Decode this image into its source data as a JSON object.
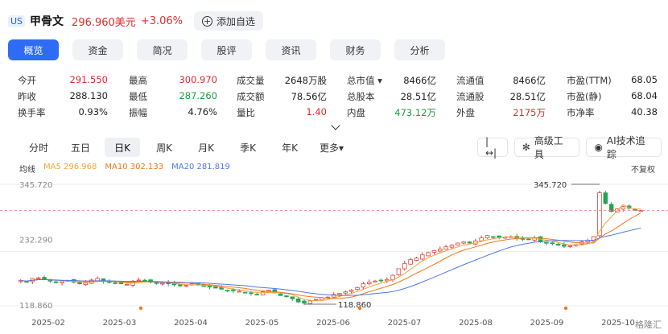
{
  "header": {
    "market": "US",
    "name": "甲骨文",
    "price": "296.960美元",
    "change": "+3.06%",
    "watch_label": "添加自选",
    "watch_icon": "plus-circle-icon"
  },
  "tabs": [
    "概览",
    "资金",
    "简况",
    "股评",
    "资讯",
    "财务",
    "分析"
  ],
  "stats": {
    "row1": [
      {
        "label": "今开",
        "value": "291.550",
        "tone": "up"
      },
      {
        "label": "最高",
        "value": "300.970",
        "tone": "up"
      },
      {
        "label": "成交量",
        "value": "2648万股",
        "tone": ""
      },
      {
        "label": "总市值 ▾",
        "value": "8466亿",
        "tone": ""
      },
      {
        "label": "流通值",
        "value": "8466亿",
        "tone": ""
      },
      {
        "label": "市盈(TTM)",
        "value": "68.05",
        "tone": ""
      }
    ],
    "row2": [
      {
        "label": "昨收",
        "value": "288.130",
        "tone": ""
      },
      {
        "label": "最低",
        "value": "287.260",
        "tone": "down"
      },
      {
        "label": "成交额",
        "value": "78.56亿",
        "tone": ""
      },
      {
        "label": "总股本",
        "value": "28.51亿",
        "tone": ""
      },
      {
        "label": "流通股",
        "value": "28.51亿",
        "tone": ""
      },
      {
        "label": "市盈(静)",
        "value": "68.04",
        "tone": ""
      }
    ],
    "row3": [
      {
        "label": "换手率",
        "value": "0.93%",
        "tone": ""
      },
      {
        "label": "振幅",
        "value": "4.76%",
        "tone": ""
      },
      {
        "label": "量比",
        "value": "1.40",
        "tone": "up"
      },
      {
        "label": "内盘",
        "value": "473.12万",
        "tone": "down"
      },
      {
        "label": "外盘",
        "value": "2175万",
        "tone": "up"
      },
      {
        "label": "市净率",
        "value": "40.38",
        "tone": ""
      }
    ]
  },
  "periods": [
    "分时",
    "五日",
    "日K",
    "周K",
    "月K",
    "季K",
    "年K",
    "更多▾"
  ],
  "tools": {
    "expand_icon": "|↔|",
    "advanced_label": "高级工具",
    "advanced_icon": "pinwheel-icon",
    "ai_label": "AI技术追踪",
    "ai_icon": "ai-circle-icon"
  },
  "ma": {
    "label": "均线",
    "ma5": "MA5 296.968",
    "ma10": "MA10 302.133",
    "ma20": "MA20 281.819",
    "adjust": "不复权"
  },
  "chart_data": {
    "type": "candlestick",
    "y_ticks": [
      "345.720",
      "232.290",
      "118.860"
    ],
    "max_label": "345.720",
    "min_label": "118.860",
    "ylim": [
      118.86,
      345.72
    ],
    "x_ticks": [
      "2025-02",
      "2025-03",
      "2025-04",
      "2025-05",
      "2025-06",
      "2025-07",
      "2025-08",
      "2025-09",
      "2025-10"
    ],
    "current_price": 296.96,
    "colors": {
      "up": "#e0433f",
      "down": "#26a454",
      "ma5": "#f3a43a",
      "ma10": "#f0781e",
      "ma20": "#4d79e8",
      "price_line": "#ef8b8b"
    },
    "closes": [
      166,
      164,
      170,
      171,
      168,
      165,
      163,
      164,
      166,
      163,
      160,
      162,
      167,
      170,
      165,
      163,
      161,
      160,
      159,
      165,
      167,
      166,
      163,
      162,
      161,
      160,
      158,
      156,
      157,
      160,
      158,
      155,
      154,
      152,
      150,
      148,
      147,
      146,
      143,
      142,
      140,
      145,
      148,
      143,
      138,
      136,
      132,
      126,
      124,
      128,
      131,
      134,
      135,
      140,
      142,
      145,
      148,
      153,
      160,
      163,
      165,
      166,
      168,
      176,
      188,
      198,
      205,
      208,
      214,
      218,
      222,
      225,
      229,
      232,
      236,
      238,
      236,
      240,
      246,
      250,
      248,
      246,
      247,
      248,
      245,
      244,
      243,
      246,
      238,
      236,
      235,
      232,
      230,
      231,
      233,
      238,
      241,
      248,
      330,
      310,
      295,
      300,
      304,
      301,
      297,
      296.96
    ],
    "watermark": "格隆汇"
  }
}
